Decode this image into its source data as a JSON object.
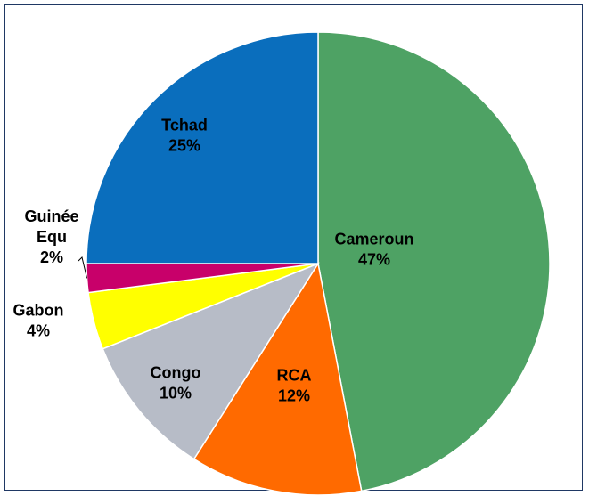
{
  "chart_data": {
    "type": "pie",
    "title": "",
    "legend": "none",
    "slices": [
      {
        "label": "Cameroun",
        "line1": "Cameroun",
        "line2": "",
        "percent_label": "47%",
        "value": 47,
        "color": "#4ea264"
      },
      {
        "label": "RCA",
        "line1": "RCA",
        "line2": "",
        "percent_label": "12%",
        "value": 12,
        "color": "#ff6a00"
      },
      {
        "label": "Congo",
        "line1": "Congo",
        "line2": "",
        "percent_label": "10%",
        "value": 10,
        "color": "#b7bcc7"
      },
      {
        "label": "Gabon",
        "line1": "Gabon",
        "line2": "",
        "percent_label": "4%",
        "value": 4,
        "color": "#ffff00"
      },
      {
        "label": "Guinée Equ",
        "line1": "Guinée",
        "line2": "Equ",
        "percent_label": "2%",
        "value": 2,
        "color": "#c8006a"
      },
      {
        "label": "Tchad",
        "line1": "Tchad",
        "line2": "",
        "percent_label": "25%",
        "value": 25,
        "color": "#0a6ebd"
      }
    ]
  }
}
